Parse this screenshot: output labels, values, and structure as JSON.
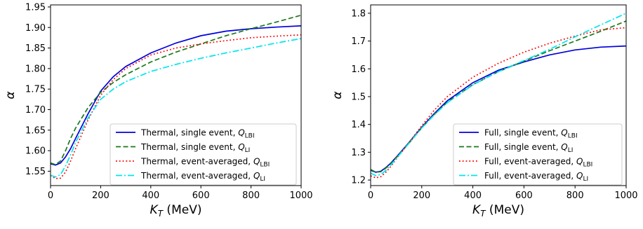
{
  "chart_data": [
    {
      "type": "line",
      "xlabel": "K_T (MeV)",
      "ylabel": "α",
      "xlim": [
        0,
        1000
      ],
      "ylim": [
        1.515,
        1.955
      ],
      "xticks": [
        0,
        200,
        400,
        600,
        800,
        1000
      ],
      "yticks": [
        1.55,
        1.6,
        1.65,
        1.7,
        1.75,
        1.8,
        1.85,
        1.9,
        1.95
      ],
      "ytick_labels": [
        "1.55",
        "1.60",
        "1.65",
        "1.70",
        "1.75",
        "1.80",
        "1.85",
        "1.90",
        "1.95"
      ],
      "grid": false,
      "legend_position": "bottom-right",
      "series": [
        {
          "name": "Thermal, single event, Q_LBI",
          "legend_main": "Thermal, single event, ",
          "legend_sub": "LBI",
          "color": "#0000dd",
          "style": "solid",
          "x": [
            0,
            20,
            40,
            60,
            80,
            100,
            150,
            200,
            250,
            300,
            400,
            500,
            600,
            700,
            800,
            900,
            1000
          ],
          "y": [
            1.568,
            1.565,
            1.57,
            1.585,
            1.605,
            1.63,
            1.69,
            1.745,
            1.78,
            1.805,
            1.838,
            1.862,
            1.88,
            1.891,
            1.897,
            1.901,
            1.904
          ]
        },
        {
          "name": "Thermal, single event, Q_LI",
          "legend_main": "Thermal, single event, ",
          "legend_sub": "LI",
          "color": "#1a7a1a",
          "style": "dashed",
          "x": [
            0,
            20,
            40,
            60,
            80,
            100,
            150,
            200,
            250,
            300,
            400,
            500,
            600,
            700,
            800,
            900,
            1000
          ],
          "y": [
            1.57,
            1.566,
            1.575,
            1.6,
            1.63,
            1.655,
            1.705,
            1.742,
            1.766,
            1.785,
            1.816,
            1.84,
            1.86,
            1.88,
            1.897,
            1.913,
            1.93
          ]
        },
        {
          "name": "Thermal, event-averaged, Q_LBI",
          "legend_main": "Thermal, event-averaged, ",
          "legend_sub": "LBI",
          "color": "#ff0000",
          "style": "dotted",
          "x": [
            0,
            20,
            40,
            60,
            80,
            100,
            150,
            200,
            250,
            300,
            400,
            500,
            600,
            700,
            800,
            900,
            1000
          ],
          "y": [
            1.54,
            1.532,
            1.533,
            1.548,
            1.575,
            1.605,
            1.675,
            1.735,
            1.773,
            1.8,
            1.833,
            1.85,
            1.86,
            1.868,
            1.875,
            1.879,
            1.882
          ]
        },
        {
          "name": "Thermal, event-averaged, Q_LI",
          "legend_main": "Thermal, event-averaged, ",
          "legend_sub": "LI",
          "color": "#00e5ee",
          "style": "dashdot",
          "x": [
            0,
            20,
            40,
            60,
            80,
            100,
            150,
            200,
            250,
            300,
            400,
            500,
            600,
            700,
            800,
            900,
            1000
          ],
          "y": [
            1.54,
            1.536,
            1.542,
            1.563,
            1.59,
            1.62,
            1.68,
            1.725,
            1.75,
            1.768,
            1.793,
            1.81,
            1.825,
            1.838,
            1.85,
            1.862,
            1.873
          ]
        }
      ]
    },
    {
      "type": "line",
      "xlabel": "K_T (MeV)",
      "ylabel": "α",
      "xlim": [
        0,
        1000
      ],
      "ylim": [
        1.18,
        1.83
      ],
      "xticks": [
        0,
        200,
        400,
        600,
        800,
        1000
      ],
      "yticks": [
        1.2,
        1.3,
        1.4,
        1.5,
        1.6,
        1.7,
        1.8
      ],
      "ytick_labels": [
        "1.2",
        "1.3",
        "1.4",
        "1.5",
        "1.6",
        "1.7",
        "1.8"
      ],
      "grid": false,
      "legend_position": "bottom-right",
      "series": [
        {
          "name": "Full, single event, Q_LBI",
          "legend_main": "Full, single event, ",
          "legend_sub": "LBI",
          "color": "#0000dd",
          "style": "solid",
          "x": [
            0,
            20,
            40,
            60,
            80,
            100,
            150,
            200,
            250,
            300,
            400,
            500,
            600,
            700,
            800,
            900,
            1000
          ],
          "y": [
            1.235,
            1.228,
            1.232,
            1.245,
            1.262,
            1.282,
            1.335,
            1.39,
            1.44,
            1.485,
            1.55,
            1.595,
            1.625,
            1.65,
            1.668,
            1.678,
            1.682
          ]
        },
        {
          "name": "Full, single event, Q_LI",
          "legend_main": "Full, single event, ",
          "legend_sub": "LI",
          "color": "#1a7a1a",
          "style": "dashed",
          "x": [
            0,
            20,
            40,
            60,
            80,
            100,
            150,
            200,
            250,
            300,
            400,
            500,
            600,
            700,
            800,
            900,
            1000
          ],
          "y": [
            1.238,
            1.228,
            1.23,
            1.243,
            1.26,
            1.28,
            1.333,
            1.388,
            1.437,
            1.48,
            1.543,
            1.59,
            1.628,
            1.665,
            1.7,
            1.735,
            1.772
          ]
        },
        {
          "name": "Full, event-averaged, Q_LBI",
          "legend_main": "Full, event-averaged, ",
          "legend_sub": "LBI",
          "color": "#ff0000",
          "style": "dotted",
          "x": [
            0,
            20,
            40,
            60,
            80,
            100,
            150,
            200,
            250,
            300,
            400,
            500,
            600,
            700,
            800,
            900,
            1000
          ],
          "y": [
            1.215,
            1.208,
            1.212,
            1.228,
            1.25,
            1.275,
            1.335,
            1.395,
            1.452,
            1.5,
            1.57,
            1.62,
            1.66,
            1.692,
            1.718,
            1.74,
            1.748
          ]
        },
        {
          "name": "Full, event-averaged, Q_LI",
          "legend_main": "Full, event-averaged, ",
          "legend_sub": "LI",
          "color": "#00e5ee",
          "style": "dashdot",
          "x": [
            0,
            20,
            40,
            60,
            80,
            100,
            150,
            200,
            250,
            300,
            400,
            500,
            600,
            700,
            800,
            900,
            1000
          ],
          "y": [
            1.225,
            1.216,
            1.22,
            1.235,
            1.255,
            1.277,
            1.332,
            1.387,
            1.435,
            1.478,
            1.542,
            1.59,
            1.63,
            1.67,
            1.715,
            1.758,
            1.8
          ]
        }
      ]
    }
  ]
}
